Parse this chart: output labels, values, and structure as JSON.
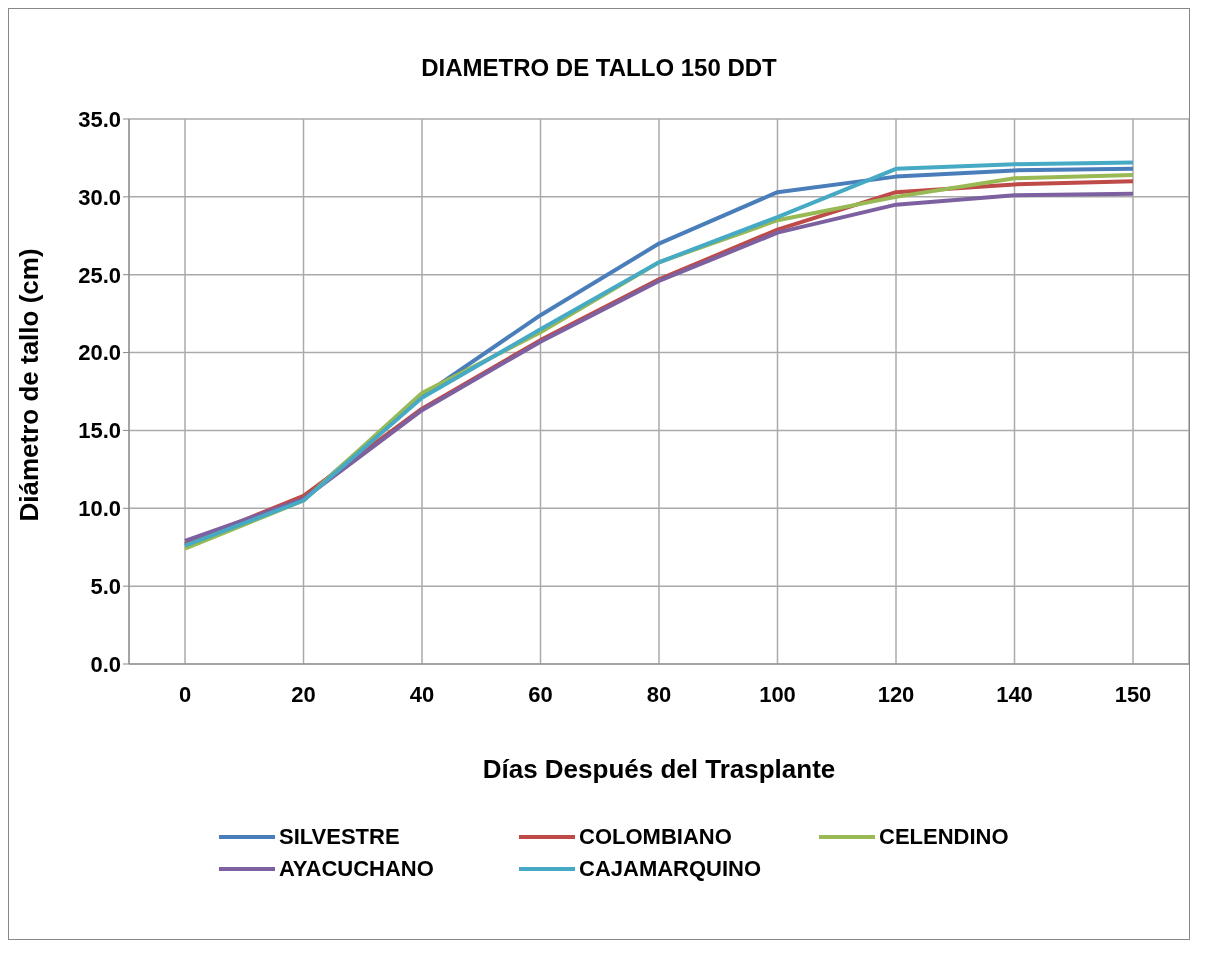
{
  "chart_data": {
    "type": "line",
    "title": "DIAMETRO DE TALLO 150 DDT",
    "xlabel": "Días Después del Trasplante",
    "ylabel": "Diámetro de tallo (cm)",
    "categories": [
      "0",
      "20",
      "40",
      "60",
      "80",
      "100",
      "120",
      "140",
      "150"
    ],
    "series": [
      {
        "name": "SILVESTRE",
        "color": "#4a7ebb",
        "values": [
          7.6,
          10.6,
          17.2,
          22.4,
          27.0,
          30.3,
          31.3,
          31.7,
          31.8
        ]
      },
      {
        "name": "COLOMBIANO",
        "color": "#be4b48",
        "values": [
          7.7,
          10.8,
          16.4,
          20.8,
          24.7,
          27.9,
          30.3,
          30.8,
          31.0
        ]
      },
      {
        "name": "CELENDINO",
        "color": "#98b954",
        "values": [
          7.4,
          10.5,
          17.4,
          21.3,
          25.8,
          28.5,
          30.0,
          31.2,
          31.4
        ]
      },
      {
        "name": "AYACUCHANO",
        "color": "#7d60a0",
        "values": [
          7.9,
          10.6,
          16.3,
          20.7,
          24.6,
          27.7,
          29.5,
          30.1,
          30.2
        ]
      },
      {
        "name": "CAJAMARQUINO",
        "color": "#46aac5",
        "values": [
          7.6,
          10.5,
          17.1,
          21.5,
          25.8,
          28.7,
          31.8,
          32.1,
          32.2
        ]
      }
    ],
    "ylim": [
      0,
      35
    ],
    "yticks": [
      {
        "value": 0,
        "label": "0.0"
      },
      {
        "value": 5,
        "label": "5.0"
      },
      {
        "value": 10,
        "label": "10.0"
      },
      {
        "value": 15,
        "label": "15.0"
      },
      {
        "value": 20,
        "label": "20.0"
      },
      {
        "value": 25,
        "label": "25.0"
      },
      {
        "value": 30,
        "label": "30.0"
      },
      {
        "value": 35,
        "label": "35.0"
      }
    ],
    "grid": true,
    "legend": "bottom",
    "marker": "none",
    "line_style": "solid"
  }
}
